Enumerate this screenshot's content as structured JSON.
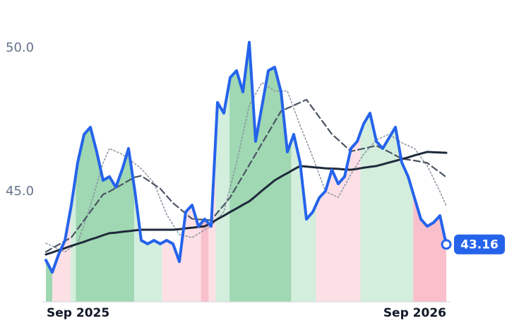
{
  "chart_data": {
    "type": "line",
    "x": [
      0,
      1,
      2,
      3,
      4,
      5,
      6,
      7,
      8,
      9,
      10,
      11,
      12,
      13,
      14,
      15,
      16,
      17,
      18,
      19,
      20,
      21,
      22,
      23,
      24,
      25,
      26,
      27,
      28,
      29,
      30,
      31,
      32,
      33,
      34,
      35,
      36,
      37,
      38,
      39,
      40,
      41,
      42,
      43,
      44,
      45,
      46,
      47,
      48,
      49,
      50,
      51,
      52,
      53,
      54,
      55,
      56,
      57,
      58,
      59,
      60,
      61,
      62,
      63
    ],
    "series": [
      {
        "color": "#8a93a0",
        "style": "dotted",
        "values": [
          43.2,
          43.1,
          43.0,
          42.9,
          43.05,
          43.2,
          43.85,
          44.5,
          45.25,
          46.0,
          46.5,
          46.4,
          46.3,
          46.13,
          45.97,
          45.8,
          45.55,
          45.3,
          44.75,
          44.2,
          43.85,
          43.5,
          43.45,
          43.4,
          43.53,
          43.67,
          43.8,
          44.05,
          44.3,
          45.15,
          46.0,
          47.0,
          48.0,
          48.4,
          48.8,
          48.65,
          48.5,
          48.5,
          48.5,
          47.9,
          47.3,
          46.75,
          46.2,
          45.6,
          45.0,
          44.9,
          44.8,
          45.2,
          45.6,
          45.95,
          46.3,
          46.55,
          46.8,
          46.9,
          47.0,
          46.85,
          46.7,
          46.6,
          46.5,
          46.2,
          45.9,
          45.45,
          45.0,
          44.5
        ]
      },
      {
        "color": "#4b5563",
        "style": "dashed",
        "values": [
          42.9,
          43.03,
          43.15,
          43.28,
          43.4,
          43.7,
          44.0,
          44.3,
          44.6,
          44.9,
          45.0,
          45.13,
          45.25,
          45.38,
          45.5,
          45.55,
          45.4,
          45.25,
          45.1,
          44.85,
          44.6,
          44.42,
          44.23,
          44.05,
          44.03,
          44.02,
          44.0,
          44.27,
          44.53,
          44.8,
          45.18,
          45.55,
          45.93,
          46.3,
          46.68,
          47.05,
          47.43,
          47.8,
          47.9,
          48.0,
          48.1,
          48.2,
          47.9,
          47.6,
          47.3,
          47.0,
          46.8,
          46.6,
          46.4,
          46.45,
          46.5,
          46.55,
          46.6,
          46.49,
          46.38,
          46.26,
          46.15,
          46.11,
          46.08,
          46.04,
          46.0,
          45.83,
          45.67,
          45.5
        ]
      },
      {
        "color": "#1e293b",
        "style": "solid",
        "values": [
          42.81,
          42.88,
          42.96,
          43.03,
          43.11,
          43.18,
          43.25,
          43.33,
          43.4,
          43.48,
          43.55,
          43.57,
          43.6,
          43.62,
          43.65,
          43.67,
          43.67,
          43.67,
          43.67,
          43.67,
          43.67,
          43.69,
          43.72,
          43.74,
          43.77,
          43.79,
          43.91,
          44.04,
          44.16,
          44.29,
          44.41,
          44.54,
          44.66,
          44.84,
          45.03,
          45.21,
          45.39,
          45.52,
          45.64,
          45.77,
          45.89,
          45.87,
          45.85,
          45.83,
          45.81,
          45.8,
          45.79,
          45.77,
          45.76,
          45.79,
          45.83,
          45.86,
          45.89,
          45.95,
          46.01,
          46.07,
          46.13,
          46.19,
          46.26,
          46.32,
          46.38,
          46.37,
          46.36,
          46.35
        ]
      },
      {
        "color": "#2563eb",
        "style": "price",
        "values": [
          42.61,
          42.19,
          42.81,
          43.3,
          44.53,
          46.01,
          46.99,
          47.24,
          46.38,
          45.39,
          45.52,
          45.15,
          45.76,
          46.5,
          45.02,
          43.3,
          43.18,
          43.3,
          43.18,
          43.3,
          43.18,
          42.56,
          44.29,
          44.53,
          43.79,
          44.04,
          43.79,
          48.1,
          47.73,
          48.97,
          49.21,
          48.47,
          50.2,
          46.75,
          47.98,
          49.21,
          49.33,
          48.47,
          46.38,
          46.99,
          46.01,
          44.04,
          44.29,
          44.78,
          45.02,
          45.76,
          45.27,
          45.52,
          46.5,
          46.75,
          47.36,
          47.73,
          46.75,
          46.5,
          46.87,
          47.24,
          46.01,
          45.52,
          44.78,
          44.04,
          43.79,
          43.92,
          44.16,
          43.16
        ],
        "last_label": "43.16"
      }
    ],
    "regions": [
      {
        "from": 0,
        "to": 1,
        "color": "#9fd8b2"
      },
      {
        "from": 1,
        "to": 3.9,
        "color": "#fde0e6"
      },
      {
        "from": 3.9,
        "to": 4.7,
        "color": "#d3eedd"
      },
      {
        "from": 4.7,
        "to": 13.9,
        "color": "#9fd8b2"
      },
      {
        "from": 13.9,
        "to": 18.3,
        "color": "#d3eedd"
      },
      {
        "from": 18.3,
        "to": 24.4,
        "color": "#fde0e6"
      },
      {
        "from": 24.4,
        "to": 25.6,
        "color": "#f9c0cb"
      },
      {
        "from": 25.6,
        "to": 26.7,
        "color": "#fde0e6"
      },
      {
        "from": 26.7,
        "to": 28.9,
        "color": "#d3eedd"
      },
      {
        "from": 28.9,
        "to": 38.6,
        "color": "#9fd8b2"
      },
      {
        "from": 38.6,
        "to": 42.5,
        "color": "#d3eedd"
      },
      {
        "from": 42.5,
        "to": 49.5,
        "color": "#fde0e6"
      },
      {
        "from": 49.5,
        "to": 57.8,
        "color": "#d3eedd"
      },
      {
        "from": 57.8,
        "to": 63,
        "color": "#f9c0cb"
      }
    ],
    "xlim": [
      0,
      63
    ],
    "xticks": [
      {
        "value": 0,
        "label": "Sep 2025"
      },
      {
        "value": 63,
        "label": "Sep 2026"
      }
    ],
    "ylim": [
      41.16,
      51.67
    ],
    "yticks": [
      {
        "value": 45,
        "label": "45.0"
      },
      {
        "value": 50,
        "label": "50.0"
      }
    ]
  }
}
